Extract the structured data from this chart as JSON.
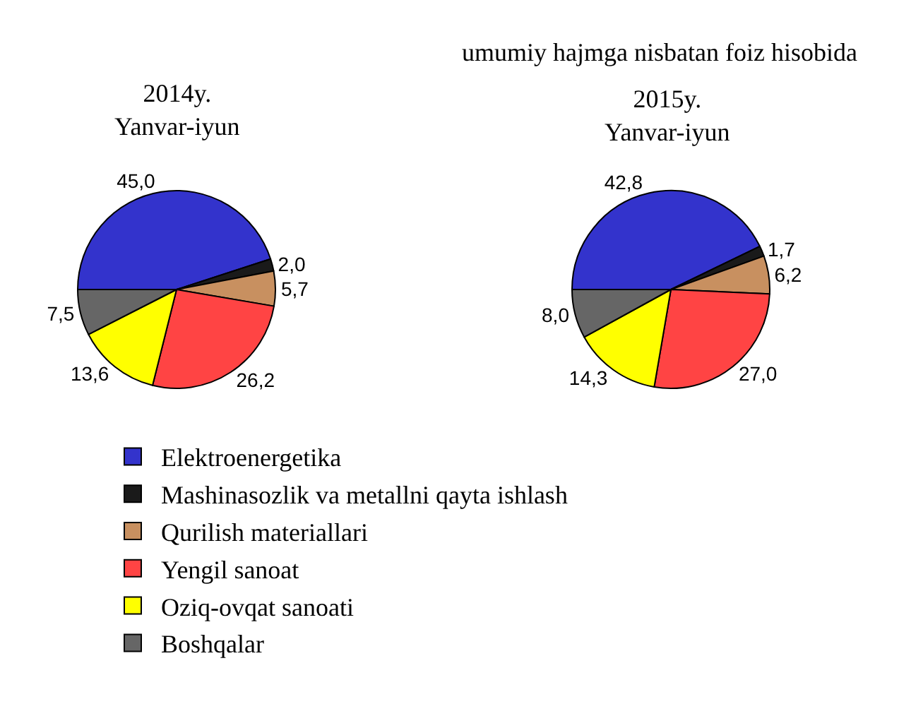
{
  "chart_data": [
    {
      "type": "pie",
      "title": "2014y.\nYanvar-iyun",
      "categories": [
        "Elektroenergetika",
        "Mashinasozlik va metallni qayta ishlash",
        "Qurilish materiallari",
        "Yengil sanoat",
        "Oziq-ovqat sanoati",
        "Boshqalar"
      ],
      "values": [
        45.0,
        2.0,
        5.7,
        26.2,
        13.6,
        7.5
      ],
      "value_labels": [
        "45,0",
        "2,0",
        "5,7",
        "26,2",
        "13,6",
        "7,5"
      ],
      "colors": [
        "#3333cc",
        "#1a1a1a",
        "#c89060",
        "#ff4444",
        "#ffff00",
        "#666666"
      ],
      "legend": "bottom right"
    },
    {
      "type": "pie",
      "title": "2015y.\nYanvar-iyun",
      "annotations": [
        "umumiy hajmga nisbatan foiz hisobida"
      ],
      "categories": [
        null,
        null,
        null,
        null,
        null,
        null
      ],
      "values": [
        42.8,
        1.7,
        6.2,
        27.0,
        14.3,
        8.0
      ],
      "value_labels": [
        "42,8",
        "1,7",
        "6,2",
        "27,0",
        "14,3",
        "8,0"
      ],
      "colors": [
        "#3333cc",
        "#1a1a1a",
        "#c89060",
        "#ff4444",
        "#ffff00",
        "#666666"
      ],
      "legend": false
    }
  ]
}
